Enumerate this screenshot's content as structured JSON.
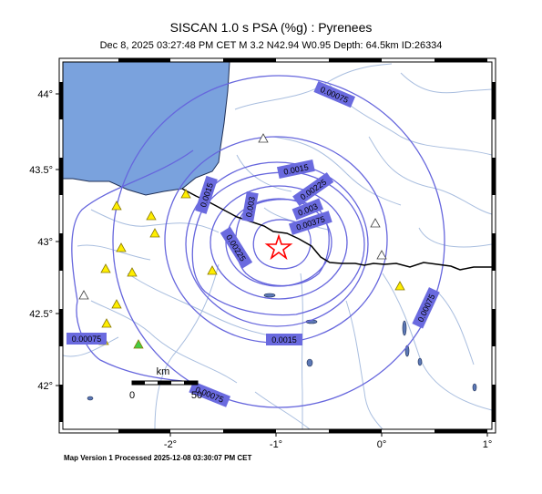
{
  "map": {
    "title": "SISCAN 1.0 s PSA (%g) : Pyrenees",
    "subtitle": "Dec  8, 2025 03:27:48 PM CET    M 3.2    N42.94 W0.95    Depth: 64.5km    ID:26334",
    "footer": "Map Version 1 Processed 2025-12-08 03:30:07 PM CET",
    "lon_ticks": [
      "-2°",
      "-1°",
      "0°",
      "1°"
    ],
    "lat_ticks": [
      "44°",
      "43.5°",
      "43°",
      "42.5°",
      "42°"
    ],
    "scalebar": {
      "unit": "km",
      "start": "0",
      "end": "50"
    },
    "contour_labels": [
      "0.00075",
      "0.0015",
      "0.00225",
      "0.003",
      "0.00375",
      "0.00225",
      "0.003",
      "0.0015",
      "0.0015",
      "0.00075",
      "0.00075",
      "0.00075"
    ],
    "colors": {
      "water": "#7aa2dd",
      "contour": "#6666dd",
      "label_bg": "#6a6adf",
      "rivers": "#9fb5d8",
      "station": "#ffee00",
      "station_outline": "#8a7a00",
      "station_green": "#44cc44",
      "epicenter": "#ff0000"
    },
    "symbols": {
      "epicenter": "star-icon",
      "station": "triangle-icon"
    }
  }
}
